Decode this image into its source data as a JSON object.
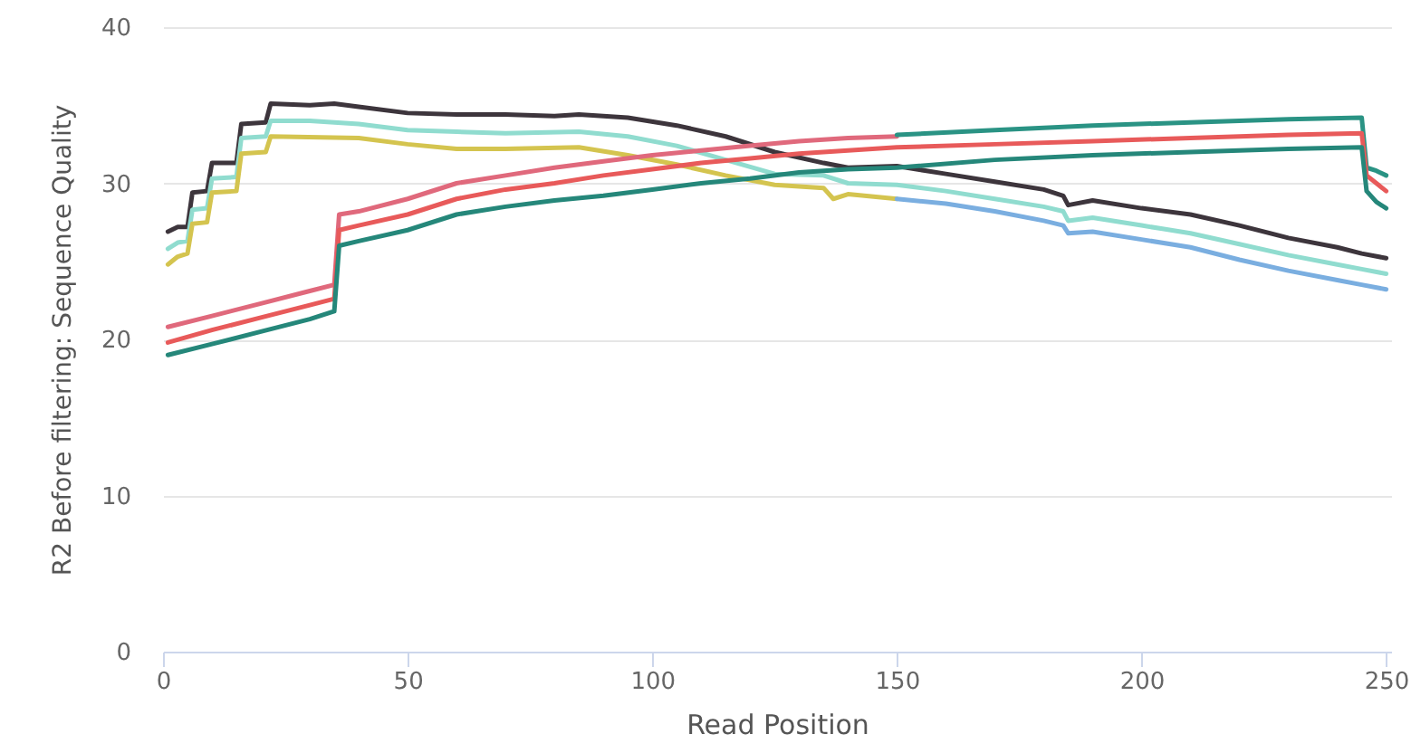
{
  "chart_data": {
    "type": "line",
    "xlabel": "Read Position",
    "ylabel": "R2 Before filtering: Sequence Quality",
    "xlim": [
      0,
      251
    ],
    "xticks": [
      0,
      50,
      100,
      150,
      200,
      250
    ],
    "ylim": [
      0,
      40
    ],
    "yticks": [
      0,
      10,
      20,
      30,
      40
    ],
    "grid": "y",
    "marker": "none",
    "line_style": "solid",
    "series": [
      {
        "color": "#3d353c",
        "x": [
          1,
          3,
          5,
          6,
          9,
          10,
          15,
          16,
          21,
          22,
          30,
          35,
          40,
          50,
          60,
          70,
          80,
          85,
          95,
          105,
          115,
          125,
          135,
          140,
          150,
          160,
          170,
          180,
          184,
          185,
          190,
          200,
          210,
          220,
          230,
          240,
          245,
          250
        ],
        "values": [
          26.9,
          27.2,
          27.2,
          29.4,
          29.5,
          31.3,
          31.3,
          33.8,
          33.9,
          35.1,
          35.0,
          35.1,
          34.9,
          34.5,
          34.4,
          34.4,
          34.3,
          34.4,
          34.2,
          33.7,
          33.0,
          32.0,
          31.3,
          31.0,
          31.1,
          30.6,
          30.1,
          29.6,
          29.2,
          28.6,
          28.9,
          28.4,
          28.0,
          27.3,
          26.5,
          25.9,
          25.5,
          25.2
        ]
      },
      {
        "color": "#90dccf",
        "x": [
          1,
          3,
          5,
          6,
          9,
          10,
          15,
          16,
          21,
          22,
          30,
          40,
          50,
          60,
          70,
          85,
          95,
          105,
          115,
          125,
          135,
          140,
          150,
          160,
          170,
          180,
          184,
          185,
          190,
          200,
          210,
          220,
          230,
          240,
          245,
          250
        ],
        "values": [
          25.8,
          26.2,
          26.3,
          28.3,
          28.4,
          30.3,
          30.4,
          32.9,
          33.0,
          34.0,
          34.0,
          33.8,
          33.4,
          33.3,
          33.2,
          33.3,
          33.0,
          32.4,
          31.5,
          30.6,
          30.5,
          30.0,
          29.9,
          29.5,
          29.0,
          28.5,
          28.2,
          27.6,
          27.8,
          27.3,
          26.8,
          26.1,
          25.4,
          24.8,
          24.5,
          24.2
        ]
      },
      {
        "color": "#d4c44f",
        "x": [
          1,
          3,
          5,
          6,
          9,
          10,
          15,
          16,
          21,
          22,
          40,
          50,
          60,
          70,
          85,
          95,
          105,
          115,
          125,
          135,
          137,
          140,
          150
        ],
        "values": [
          24.8,
          25.3,
          25.5,
          27.4,
          27.5,
          29.4,
          29.5,
          31.9,
          32.0,
          33.0,
          32.9,
          32.5,
          32.2,
          32.2,
          32.3,
          31.8,
          31.2,
          30.5,
          29.9,
          29.7,
          29.0,
          29.3,
          29.0
        ]
      },
      {
        "color": "#7aaee0",
        "x": [
          150,
          160,
          170,
          180,
          184,
          185,
          190,
          200,
          210,
          220,
          230,
          240,
          245,
          250
        ],
        "values": [
          29.0,
          28.7,
          28.2,
          27.6,
          27.3,
          26.8,
          26.9,
          26.4,
          25.9,
          25.1,
          24.4,
          23.8,
          23.5,
          23.2
        ]
      },
      {
        "color": "#e0697c",
        "x": [
          1,
          10,
          20,
          30,
          35,
          36,
          40,
          50,
          60,
          70,
          80,
          90,
          100,
          110,
          120,
          130,
          140,
          150
        ],
        "values": [
          20.8,
          21.5,
          22.3,
          23.1,
          23.5,
          28.0,
          28.2,
          29.0,
          30.0,
          30.5,
          31.0,
          31.4,
          31.8,
          32.1,
          32.4,
          32.7,
          32.9,
          33.0
        ]
      },
      {
        "color": "#2a9384",
        "x": [
          150,
          170,
          190,
          210,
          230,
          245,
          246,
          248,
          250
        ],
        "values": [
          33.1,
          33.4,
          33.7,
          33.9,
          34.1,
          34.2,
          31.0,
          30.8,
          30.5
        ]
      },
      {
        "color": "#e85a5a",
        "x": [
          1,
          10,
          20,
          30,
          35,
          36,
          40,
          50,
          60,
          70,
          80,
          90,
          100,
          110,
          120,
          130,
          140,
          150,
          170,
          190,
          210,
          230,
          245,
          246,
          248,
          250
        ],
        "values": [
          19.8,
          20.6,
          21.4,
          22.2,
          22.6,
          27.0,
          27.3,
          28.0,
          29.0,
          29.6,
          30.0,
          30.5,
          30.9,
          31.3,
          31.6,
          31.9,
          32.1,
          32.3,
          32.5,
          32.7,
          32.9,
          33.1,
          33.2,
          30.5,
          30.0,
          29.5
        ]
      },
      {
        "color": "#25877a",
        "x": [
          1,
          10,
          20,
          30,
          35,
          36,
          40,
          50,
          60,
          70,
          80,
          90,
          100,
          110,
          120,
          130,
          140,
          150,
          170,
          190,
          210,
          230,
          245,
          246,
          248,
          250
        ],
        "values": [
          19.0,
          19.7,
          20.5,
          21.3,
          21.8,
          26.0,
          26.3,
          27.0,
          28.0,
          28.5,
          28.9,
          29.2,
          29.6,
          30.0,
          30.3,
          30.7,
          30.9,
          31.0,
          31.5,
          31.8,
          32.0,
          32.2,
          32.3,
          29.5,
          28.8,
          28.4
        ]
      }
    ]
  }
}
